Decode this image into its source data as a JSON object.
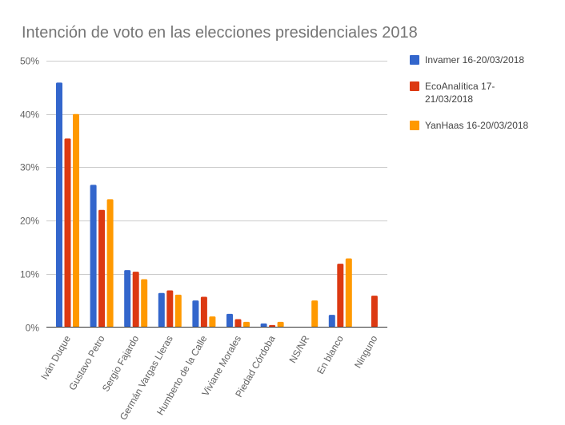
{
  "chart_data": {
    "type": "bar",
    "title": "Intención de voto en las elecciones presidenciales 2018",
    "xlabel": "",
    "ylabel": "",
    "ylim": [
      0,
      50
    ],
    "yticks": [
      "0%",
      "10%",
      "20%",
      "30%",
      "40%",
      "50%"
    ],
    "ytick_values": [
      0,
      10,
      20,
      30,
      40,
      50
    ],
    "grid": true,
    "legend_position": "right",
    "categories": [
      "Iván Duque",
      "Gustavo Petro",
      "Sergio Fajardo",
      "Germán Vargas Lleras",
      "Humberto de la Calle",
      "Viviane Morales",
      "Piedad Córdoba",
      "NS/NR",
      "En blanco",
      "Ninguno"
    ],
    "series": [
      {
        "name": "Invamer 16-20/03/2018",
        "legend_lines": [
          "Invamer 16-20/03/2018"
        ],
        "color": "#3366cc",
        "values": [
          45.9,
          26.7,
          10.7,
          6.4,
          5.0,
          2.5,
          0.7,
          null,
          2.3,
          null
        ]
      },
      {
        "name": "EcoAnalítica 17-21/03/2018",
        "legend_lines": [
          "EcoAnalítica 17-",
          "21/03/2018"
        ],
        "color": "#dc3912",
        "values": [
          35.4,
          22.0,
          10.4,
          6.9,
          5.7,
          1.5,
          0.4,
          null,
          11.9,
          5.9
        ]
      },
      {
        "name": "YanHaas 16-20/03/2018",
        "legend_lines": [
          "YanHaas 16-20/03/2018"
        ],
        "color": "#ff9900",
        "values": [
          40.0,
          24.0,
          9.0,
          6.1,
          2.0,
          1.0,
          1.0,
          5.0,
          12.9,
          null
        ]
      }
    ]
  }
}
